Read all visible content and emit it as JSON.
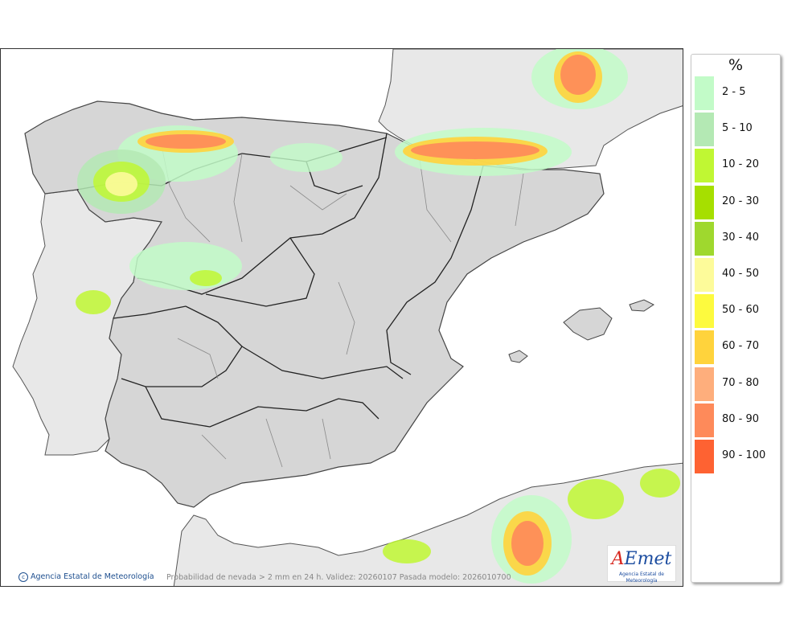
{
  "map": {
    "caption": "Probabilidad de nevada > 2 mm en 24 h. Validez: 20260107 Pasada modelo: 2026010700",
    "copyright": "Agencia Estatal de Meteorología",
    "logo_word_a": "A",
    "logo_word_rest": "Emet",
    "logo_sub": "Agencia Estatal de Meteorología"
  },
  "legend": {
    "unit": "%",
    "items": [
      {
        "label": "2 - 5",
        "color": "#c2fbc8"
      },
      {
        "label": "5 - 10",
        "color": "#b4e9b4"
      },
      {
        "label": "10 - 20",
        "color": "#c0f733"
      },
      {
        "label": "20 - 30",
        "color": "#a6df00"
      },
      {
        "label": "30 - 40",
        "color": "#9fd82e"
      },
      {
        "label": "40 - 50",
        "color": "#fdfb9a"
      },
      {
        "label": "50 - 60",
        "color": "#fdfa3e"
      },
      {
        "label": "60 - 70",
        "color": "#ffd33c"
      },
      {
        "label": "70 - 80",
        "color": "#feae7c"
      },
      {
        "label": "80 - 90",
        "color": "#fe8a5a"
      },
      {
        "label": "90 - 100",
        "color": "#fe6232"
      }
    ]
  }
}
